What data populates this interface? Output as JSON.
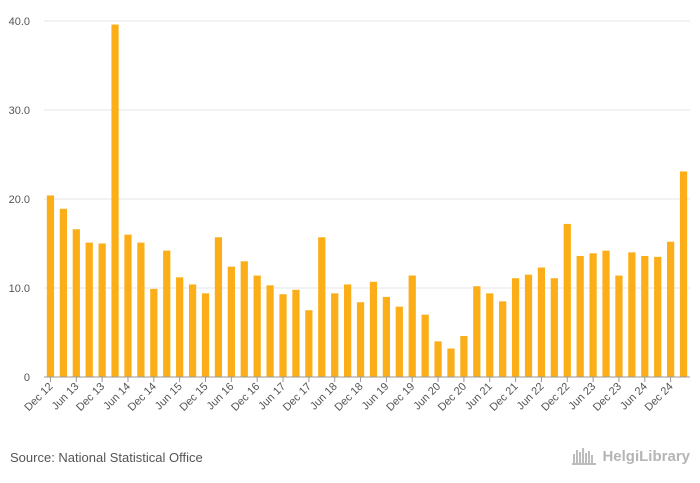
{
  "source": "Source: National Statistical Office",
  "brand": {
    "name": "HelgiLibrary",
    "icon": "bookshelf-logo-icon"
  },
  "colors": {
    "bar": "#FBAE17",
    "grid": "#e6e6e6",
    "axis": "#999999"
  },
  "chart_data": {
    "type": "bar",
    "title": "",
    "xlabel": "",
    "ylabel": "",
    "ylim": [
      0,
      40
    ],
    "yticks": [
      "0",
      "10.0",
      "20.0",
      "30.0",
      "40.0"
    ],
    "categories": [
      "Dec 12",
      "Mar 13",
      "Jun 13",
      "Sep 13",
      "Dec 13",
      "Mar 14",
      "Jun 14",
      "Sep 14",
      "Dec 14",
      "Mar 15",
      "Jun 15",
      "Sep 15",
      "Dec 15",
      "Mar 16",
      "Jun 16",
      "Sep 16",
      "Dec 16",
      "Mar 17",
      "Jun 17",
      "Sep 17",
      "Dec 17",
      "Mar 18",
      "Jun 18",
      "Sep 18",
      "Dec 18",
      "Mar 19",
      "Jun 19",
      "Sep 19",
      "Dec 19",
      "Mar 20",
      "Jun 20",
      "Sep 20",
      "Dec 20",
      "Mar 21",
      "Jun 21",
      "Sep 21",
      "Dec 21",
      "Mar 22",
      "Jun 22",
      "Sep 22",
      "Dec 22",
      "Mar 23",
      "Jun 23",
      "Sep 23",
      "Dec 23",
      "Mar 24",
      "Jun 24",
      "Sep 24",
      "Dec 24",
      "Mar 25"
    ],
    "tick_labels": [
      "Dec 12",
      "Jun 13",
      "Dec 13",
      "Jun 14",
      "Dec 14",
      "Jun 15",
      "Dec 15",
      "Jun 16",
      "Dec 16",
      "Jun 17",
      "Dec 17",
      "Jun 18",
      "Dec 18",
      "Jun 19",
      "Dec 19",
      "Jun 20",
      "Dec 20",
      "Jun 21",
      "Dec 21",
      "Jun 22",
      "Dec 22",
      "Jun 23",
      "Dec 23",
      "Jun 24",
      "Dec 24"
    ],
    "values": [
      20.4,
      18.9,
      16.6,
      15.1,
      15.0,
      39.6,
      16.0,
      15.1,
      9.9,
      14.2,
      11.2,
      10.4,
      9.4,
      15.7,
      12.4,
      13.0,
      11.4,
      10.3,
      9.3,
      9.8,
      7.5,
      15.7,
      9.4,
      10.4,
      8.4,
      10.7,
      9.0,
      7.9,
      11.4,
      7.0,
      4.0,
      3.2,
      4.6,
      10.2,
      9.4,
      8.5,
      11.1,
      11.5,
      12.3,
      11.1,
      17.2,
      13.6,
      13.9,
      14.2,
      11.4,
      14.0,
      13.6,
      13.5,
      15.2,
      23.1
    ]
  }
}
